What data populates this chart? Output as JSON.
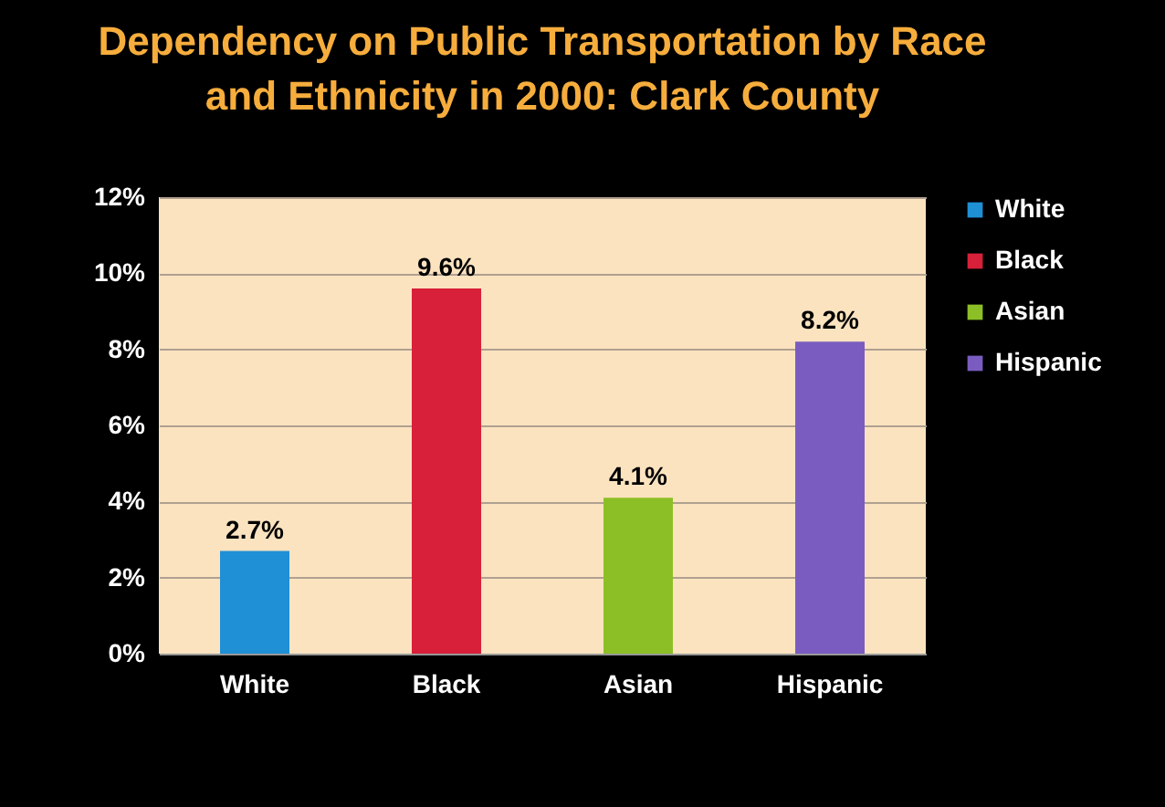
{
  "chart_data": {
    "type": "bar",
    "title": "Dependency on Public Transportation by Race and Ethnicity in 2000: Clark County",
    "categories": [
      "White",
      "Black",
      "Asian",
      "Hispanic"
    ],
    "series": [
      {
        "name": "White",
        "color": "#1f8fd6",
        "values": [
          2.7,
          null,
          null,
          null
        ],
        "value_labels": [
          "2.7%",
          null,
          null,
          null
        ]
      },
      {
        "name": "Black",
        "color": "#d8203a",
        "values": [
          null,
          9.6,
          null,
          null
        ],
        "value_labels": [
          null,
          "9.6%",
          null,
          null
        ]
      },
      {
        "name": "Asian",
        "color": "#8cbf26",
        "values": [
          null,
          null,
          4.1,
          null
        ],
        "value_labels": [
          null,
          null,
          "4.1%",
          null
        ]
      },
      {
        "name": "Hispanic",
        "color": "#7a5cc0",
        "values": [
          null,
          null,
          null,
          8.2
        ],
        "value_labels": [
          null,
          null,
          null,
          "8.2%"
        ]
      }
    ],
    "ylim": [
      0,
      12
    ],
    "yticks": [
      {
        "value": 0,
        "label": "0%"
      },
      {
        "value": 2,
        "label": "2%"
      },
      {
        "value": 4,
        "label": "4%"
      },
      {
        "value": 6,
        "label": "6%"
      },
      {
        "value": 8,
        "label": "8%"
      },
      {
        "value": 10,
        "label": "10%"
      },
      {
        "value": 12,
        "label": "12%"
      }
    ],
    "grid": "y",
    "legend": "right"
  }
}
